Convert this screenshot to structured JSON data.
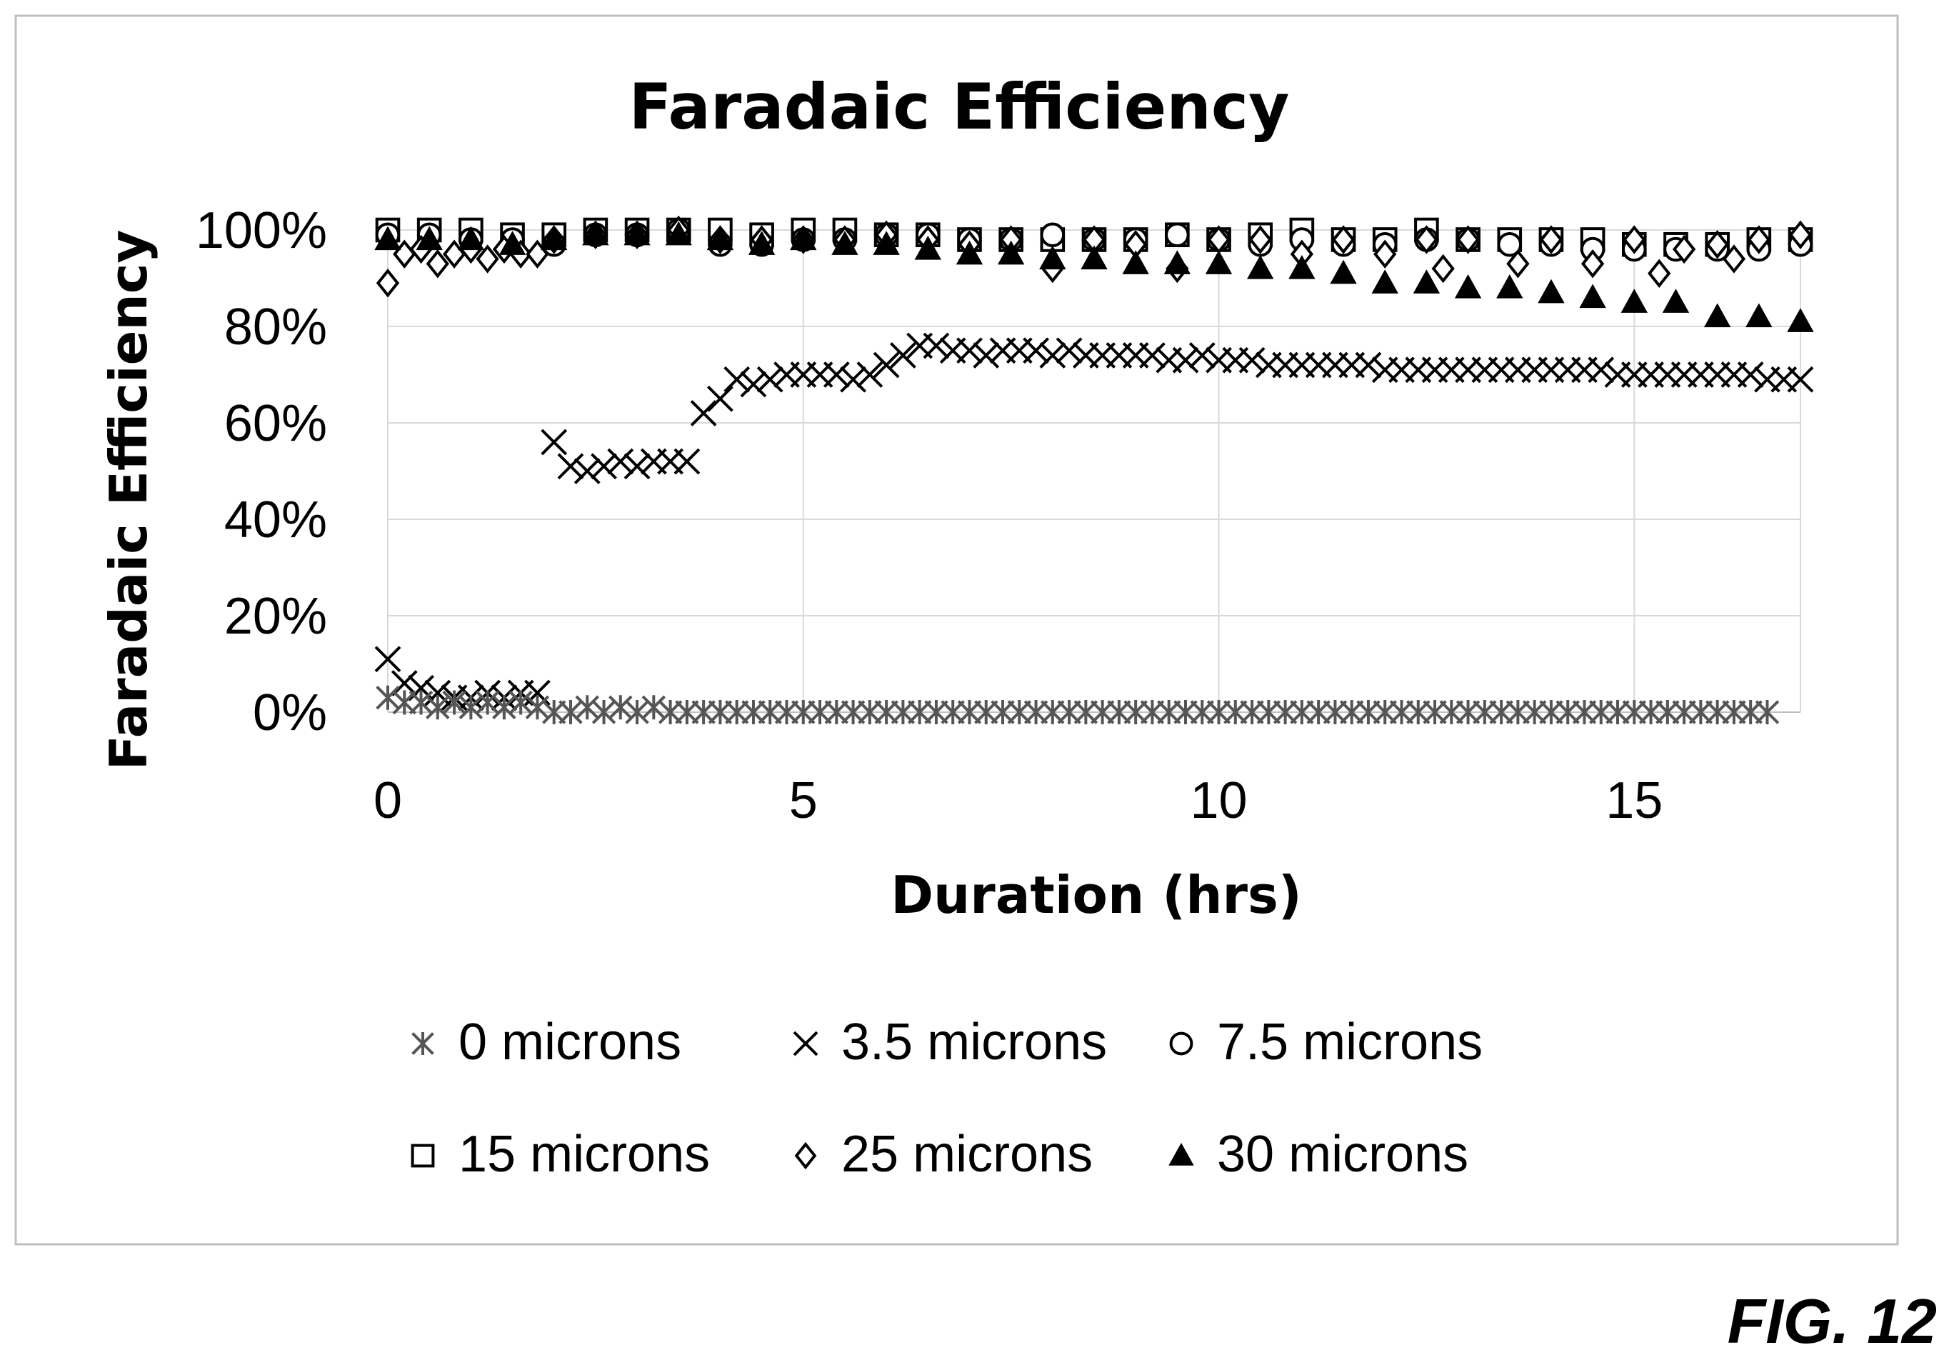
{
  "figure_label": "FIG. 12",
  "chart_data": {
    "type": "scatter",
    "title": "Faradaic Efficiency",
    "xlabel": "Duration (hrs)",
    "ylabel": "Faradaic Efficiency",
    "xlim": [
      0,
      17
    ],
    "ylim": [
      0,
      100
    ],
    "x_ticks": [
      0,
      5,
      10,
      15
    ],
    "x_tick_labels": [
      "0",
      "5",
      "10",
      "15"
    ],
    "y_ticks": [
      0,
      20,
      40,
      60,
      80,
      100
    ],
    "y_tick_labels": [
      "0%",
      "20%",
      "40%",
      "60%",
      "80%",
      "100%"
    ],
    "grid": "vertical and horizontal light gray gridlines",
    "legend_position": "bottom",
    "series": [
      {
        "name": "0 microns",
        "marker": "asterisk",
        "color": "#555555",
        "x": [
          0,
          0.2,
          0.4,
          0.6,
          0.8,
          1.0,
          1.2,
          1.4,
          1.6,
          1.8,
          2.0,
          2.2,
          2.4,
          2.6,
          2.8,
          3.0,
          3.2,
          3.4,
          3.6,
          3.8,
          4.0,
          4.2,
          4.4,
          4.6,
          4.8,
          5.0,
          5.2,
          5.4,
          5.6,
          5.8,
          6.0,
          6.2,
          6.4,
          6.6,
          6.8,
          7.0,
          7.2,
          7.4,
          7.6,
          7.8,
          8.0,
          8.2,
          8.4,
          8.6,
          8.8,
          9.0,
          9.2,
          9.4,
          9.6,
          9.8,
          10.0,
          10.2,
          10.4,
          10.6,
          10.8,
          11.0,
          11.2,
          11.4,
          11.6,
          11.8,
          12.0,
          12.2,
          12.4,
          12.6,
          12.8,
          13.0,
          13.2,
          13.4,
          13.6,
          13.8,
          14.0,
          14.2,
          14.4,
          14.6,
          14.8,
          15.0,
          15.2,
          15.4,
          15.6,
          15.8,
          16.0,
          16.2,
          16.4,
          16.6
        ],
        "y": [
          3,
          2,
          2,
          1,
          2,
          1,
          2,
          1,
          2,
          1,
          0,
          0,
          1,
          0,
          1,
          0,
          1,
          0,
          0,
          0,
          0,
          0,
          0,
          0,
          0,
          0,
          0,
          0,
          0,
          0,
          0,
          0,
          0,
          0,
          0,
          0,
          0,
          0,
          0,
          0,
          0,
          0,
          0,
          0,
          0,
          0,
          0,
          0,
          0,
          0,
          0,
          0,
          0,
          0,
          0,
          0,
          0,
          0,
          0,
          0,
          0,
          0,
          0,
          0,
          0,
          0,
          0,
          0,
          0,
          0,
          0,
          0,
          0,
          0,
          0,
          0,
          0,
          0,
          0,
          0,
          0,
          0,
          0,
          0
        ]
      },
      {
        "name": "3.5 microns",
        "marker": "x",
        "color": "#000000",
        "x": [
          0,
          0.2,
          0.4,
          0.6,
          0.8,
          1.0,
          1.2,
          1.4,
          1.6,
          1.8,
          2.0,
          2.2,
          2.4,
          2.6,
          2.8,
          3.0,
          3.2,
          3.4,
          3.6,
          3.8,
          4.0,
          4.2,
          4.4,
          4.6,
          4.8,
          5.0,
          5.2,
          5.4,
          5.6,
          5.8,
          6.0,
          6.2,
          6.4,
          6.6,
          6.8,
          7.0,
          7.2,
          7.4,
          7.6,
          7.8,
          8.0,
          8.2,
          8.4,
          8.6,
          8.8,
          9.0,
          9.2,
          9.4,
          9.6,
          9.8,
          10.0,
          10.2,
          10.4,
          10.6,
          10.8,
          11.0,
          11.2,
          11.4,
          11.6,
          11.8,
          12.0,
          12.2,
          12.4,
          12.6,
          12.8,
          13.0,
          13.2,
          13.4,
          13.6,
          13.8,
          14.0,
          14.2,
          14.4,
          14.6,
          14.8,
          15.0,
          15.2,
          15.4,
          15.6,
          15.8,
          16.0,
          16.2,
          16.4,
          16.6,
          16.8,
          17.0
        ],
        "y": [
          11,
          6,
          5,
          4,
          3,
          3,
          4,
          3,
          4,
          4,
          56,
          51,
          50,
          51,
          52,
          51,
          52,
          52,
          52,
          62,
          65,
          69,
          68,
          69,
          70,
          70,
          70,
          70,
          69,
          70,
          72,
          74,
          76,
          76,
          75,
          75,
          74,
          75,
          75,
          75,
          74,
          75,
          74,
          74,
          74,
          74,
          74,
          73,
          73,
          74,
          73,
          73,
          73,
          72,
          72,
          72,
          72,
          72,
          72,
          72,
          71,
          71,
          71,
          71,
          71,
          71,
          71,
          71,
          71,
          71,
          71,
          71,
          71,
          71,
          70,
          70,
          70,
          70,
          70,
          70,
          70,
          70,
          70,
          69,
          69,
          69
        ]
      },
      {
        "name": "7.5 microns",
        "marker": "circle",
        "color": "#000000",
        "x": [
          0,
          0.5,
          1.0,
          1.5,
          2.0,
          2.5,
          3.0,
          3.5,
          4.0,
          4.5,
          5.0,
          5.5,
          6.0,
          6.5,
          7.0,
          7.5,
          8.0,
          8.5,
          9.0,
          9.5,
          10.0,
          10.5,
          11.0,
          11.5,
          12.0,
          12.5,
          13.0,
          13.5,
          14.0,
          14.5,
          15.0,
          15.5,
          16.0,
          16.5,
          17.0
        ],
        "y": [
          99,
          99,
          98,
          98,
          97,
          99,
          99,
          100,
          97,
          97,
          98,
          98,
          99,
          99,
          98,
          98,
          99,
          98,
          98,
          99,
          98,
          97,
          98,
          97,
          97,
          98,
          98,
          97,
          97,
          96,
          96,
          96,
          96,
          96,
          97
        ]
      },
      {
        "name": "15 microns",
        "marker": "square",
        "color": "#000000",
        "x": [
          0,
          0.5,
          1.0,
          1.5,
          2.0,
          2.5,
          3.0,
          3.5,
          4.0,
          4.5,
          5.0,
          5.5,
          6.0,
          6.5,
          7.0,
          7.5,
          8.0,
          8.5,
          9.0,
          9.5,
          10.0,
          10.5,
          11.0,
          11.5,
          12.0,
          12.5,
          13.0,
          13.5,
          14.0,
          14.5,
          15.0,
          15.5,
          16.0,
          16.5,
          17.0
        ],
        "y": [
          100,
          100,
          100,
          99,
          99,
          100,
          100,
          100,
          100,
          99,
          100,
          100,
          99,
          99,
          98,
          98,
          98,
          98,
          98,
          99,
          98,
          99,
          100,
          98,
          98,
          100,
          98,
          98,
          98,
          98,
          97,
          97,
          97,
          98,
          98
        ]
      },
      {
        "name": "25 microns",
        "marker": "diamond",
        "color": "#000000",
        "x": [
          0,
          0.2,
          0.4,
          0.6,
          0.8,
          1.0,
          1.2,
          1.4,
          1.6,
          1.8,
          2.0,
          2.5,
          3.0,
          3.5,
          4.0,
          4.5,
          5.0,
          5.5,
          6.0,
          6.5,
          7.0,
          7.5,
          8.0,
          8.5,
          9.0,
          9.5,
          10.0,
          10.5,
          11.0,
          11.5,
          12.0,
          12.5,
          12.7,
          13.0,
          13.6,
          14.0,
          14.5,
          15.0,
          15.3,
          15.6,
          16.0,
          16.2,
          16.5,
          17.0
        ],
        "y": [
          89,
          95,
          96,
          93,
          95,
          96,
          94,
          96,
          95,
          95,
          98,
          99,
          99,
          100,
          98,
          98,
          98,
          98,
          99,
          98,
          97,
          98,
          92,
          98,
          97,
          92,
          98,
          98,
          95,
          98,
          95,
          98,
          92,
          98,
          93,
          98,
          93,
          98,
          91,
          96,
          97,
          94,
          98,
          99
        ]
      },
      {
        "name": "30 microns",
        "marker": "triangle",
        "color": "#000000",
        "x": [
          0,
          0.5,
          1.0,
          1.5,
          2.0,
          2.5,
          3.0,
          3.5,
          4.0,
          4.5,
          5.0,
          5.5,
          6.0,
          6.5,
          7.0,
          7.5,
          8.0,
          8.5,
          9.0,
          9.5,
          10.0,
          10.5,
          11.0,
          11.5,
          12.0,
          12.5,
          13.0,
          13.5,
          14.0,
          14.5,
          15.0,
          15.5,
          16.0,
          16.5,
          17.0
        ],
        "y": [
          98,
          98,
          98,
          97,
          98,
          99,
          99,
          99,
          98,
          97,
          98,
          97,
          97,
          96,
          95,
          95,
          94,
          94,
          93,
          93,
          93,
          92,
          92,
          91,
          89,
          89,
          88,
          88,
          87,
          86,
          85,
          85,
          82,
          82,
          81
        ]
      }
    ]
  }
}
